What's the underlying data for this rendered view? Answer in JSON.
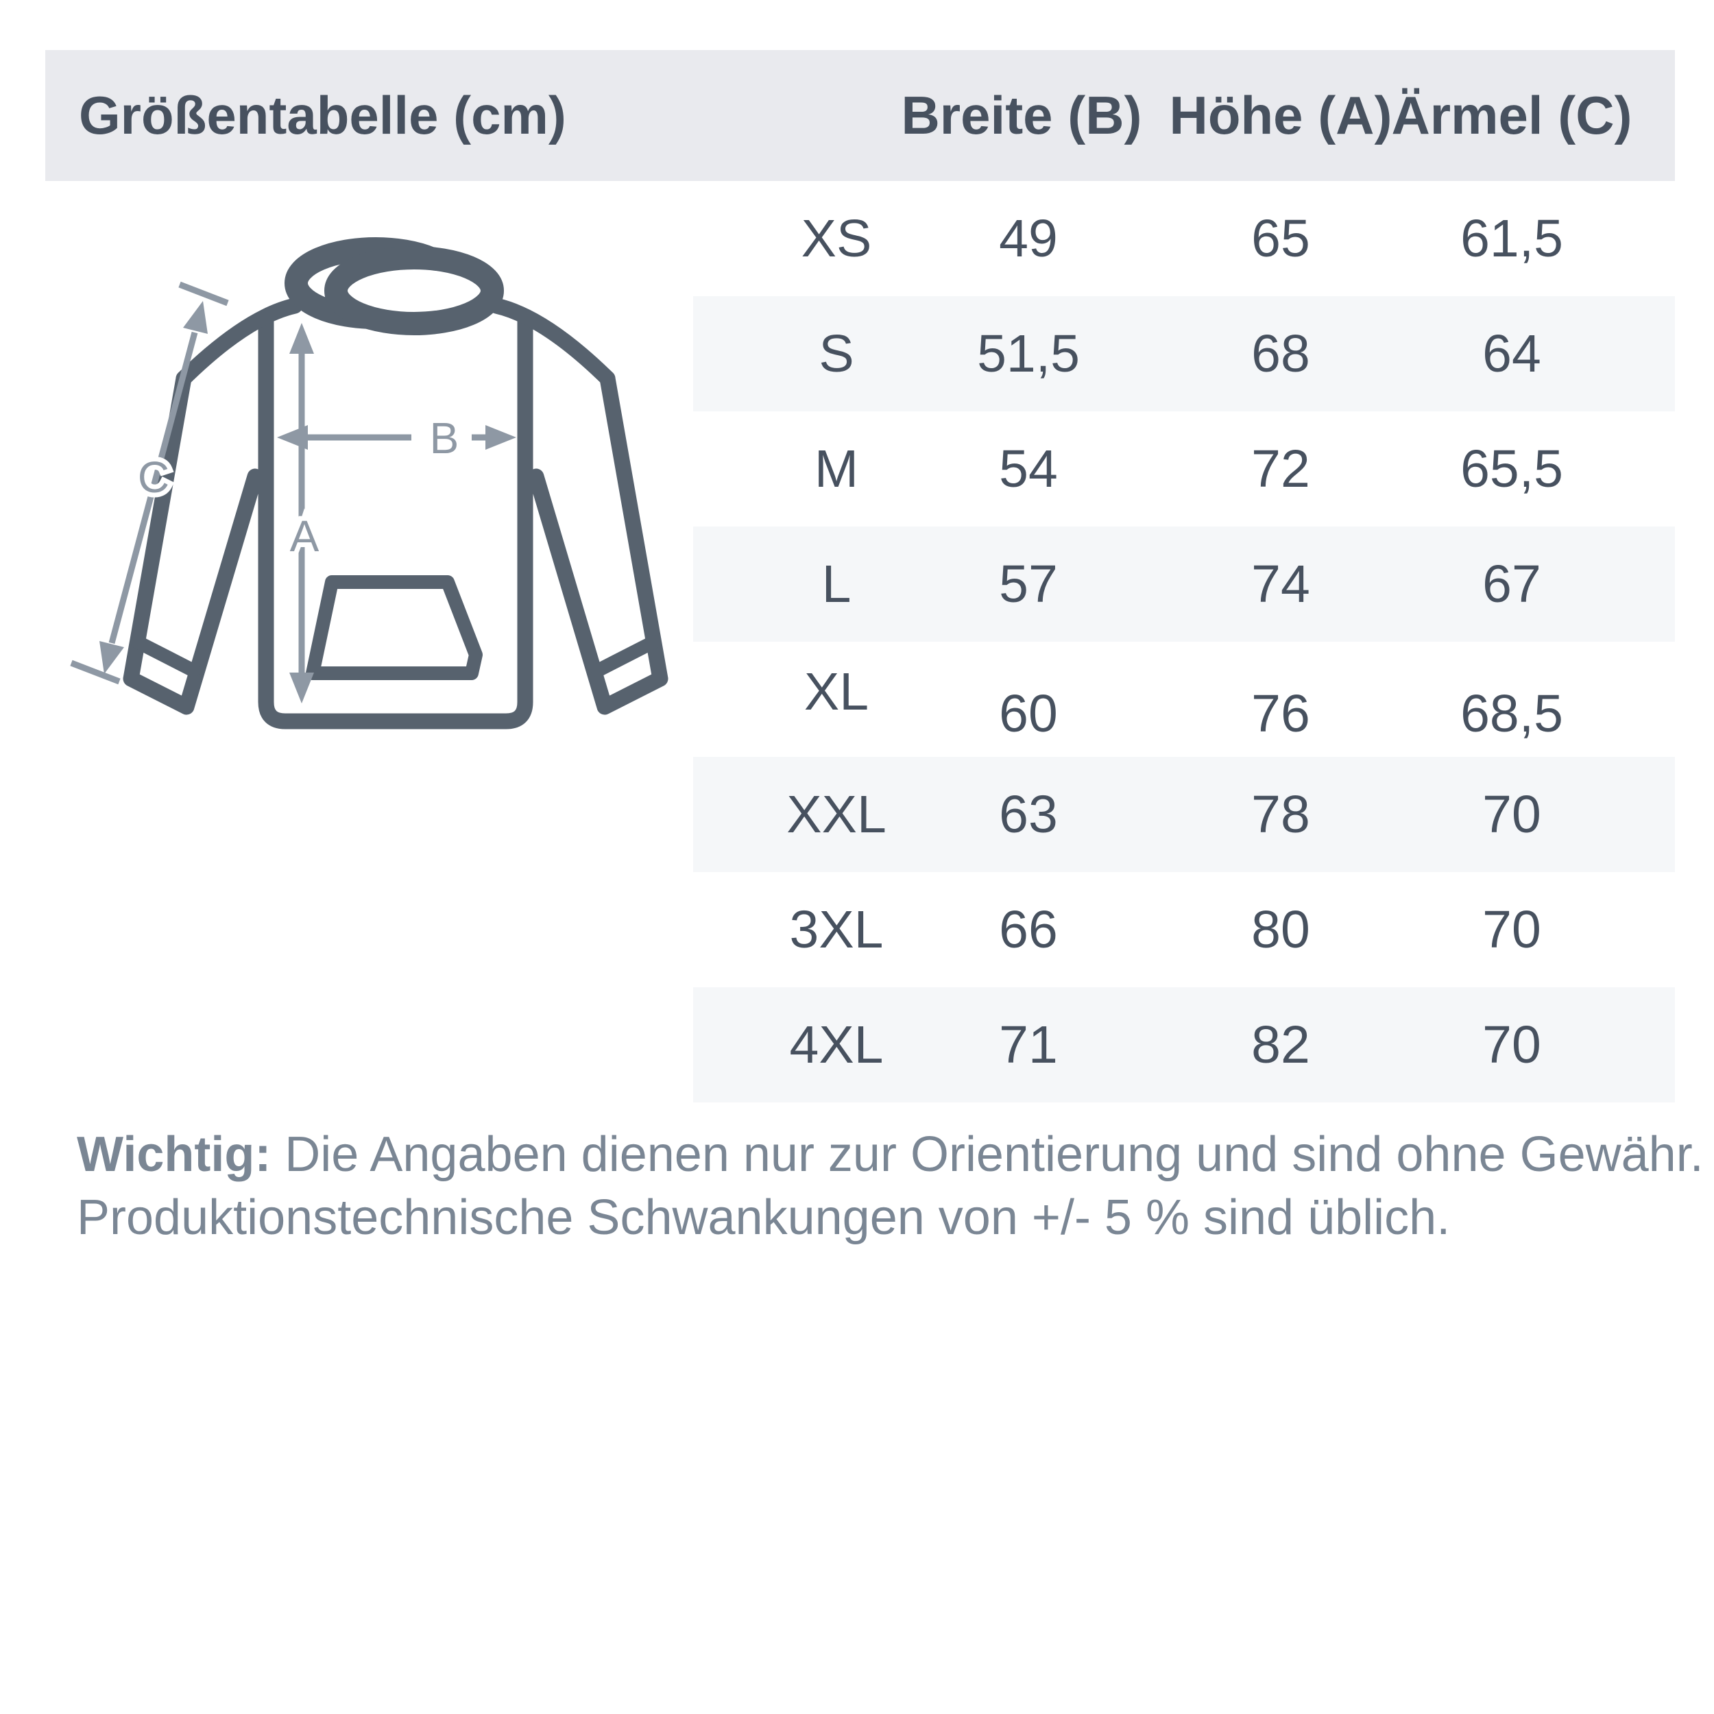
{
  "header": {
    "title": "Größentabelle (cm)",
    "columns": [
      "Breite (B)",
      "Höhe (A)",
      "Ärmel (C)"
    ]
  },
  "diagram": {
    "label_a": "A",
    "label_b": "B",
    "label_c": "C"
  },
  "table": {
    "rows": [
      {
        "size": "XS",
        "breite": "49",
        "hoehe": "65",
        "aermel": "61,5",
        "striped": false
      },
      {
        "size": "S",
        "breite": "51,5",
        "hoehe": "68",
        "aermel": "64",
        "striped": true
      },
      {
        "size": "M",
        "breite": "54",
        "hoehe": "72",
        "aermel": "65,5",
        "striped": false
      },
      {
        "size": "L",
        "breite": "57",
        "hoehe": "74",
        "aermel": "67",
        "striped": true
      },
      {
        "size": "XL",
        "breite": "60",
        "hoehe": "76",
        "aermel": "68,5",
        "striped": false
      },
      {
        "size": "XXL",
        "breite": "63",
        "hoehe": "78",
        "aermel": "70",
        "striped": true
      },
      {
        "size": "3XL",
        "breite": "66",
        "hoehe": "80",
        "aermel": "70",
        "striped": false
      },
      {
        "size": "4XL",
        "breite": "71",
        "hoehe": "82",
        "aermel": "70",
        "striped": true
      }
    ]
  },
  "note": {
    "prefix": "Wichtig:",
    "line1": " Die Angaben dienen nur zur Orientierung und sind ohne Gewähr.",
    "line2": "Produktionstechnische Schwankungen von +/- 5 % sind üblich."
  },
  "colors": {
    "header_bg": "#E9EAEE",
    "stripe_bg": "#F5F7F9",
    "text": "#47515F",
    "note_text": "#7A8694",
    "hoodie_outline": "#57626E",
    "arrow": "#8E98A4"
  }
}
